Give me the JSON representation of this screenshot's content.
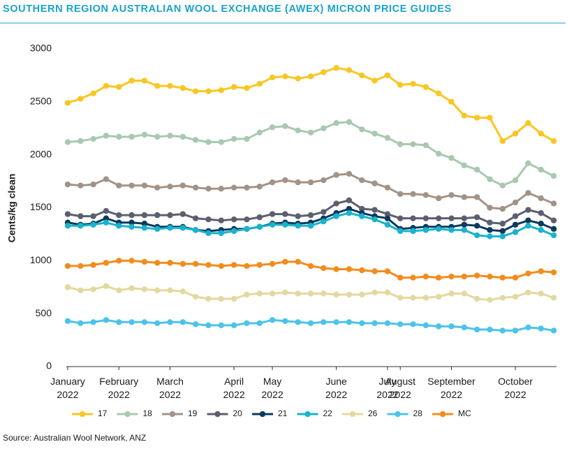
{
  "chart_data": {
    "type": "line",
    "title": "SOUTHERN REGION AUSTRALIAN WOOL EXCHANGE (AWEX) MICRON PRICE GUIDES",
    "ylabel": "Cents/kg clean",
    "source": "Source: Australian Wool Network, ANZ",
    "categories": [
      "January 2022",
      null,
      null,
      null,
      "February 2022",
      null,
      null,
      null,
      "March 2022",
      null,
      null,
      null,
      null,
      "April 2022",
      null,
      null,
      "May 2022",
      null,
      null,
      null,
      null,
      "June 2022",
      null,
      null,
      null,
      "July 2022",
      "August 2022",
      null,
      null,
      null,
      "September 2022",
      null,
      null,
      null,
      null,
      "October 2022",
      null,
      null,
      null
    ],
    "ylim": [
      0,
      3000
    ],
    "yticks": [
      0,
      500,
      1000,
      1500,
      2000,
      2500,
      3000
    ],
    "grid": false,
    "legend": "bottom",
    "series": [
      {
        "name": "17",
        "color": "#f9c623",
        "values": [
          2490,
          2530,
          2580,
          2650,
          2640,
          2700,
          2700,
          2650,
          2650,
          2630,
          2600,
          2600,
          2610,
          2640,
          2630,
          2670,
          2730,
          2740,
          2720,
          2740,
          2780,
          2820,
          2800,
          2750,
          2700,
          2750,
          2660,
          2670,
          2640,
          2580,
          2500,
          2370,
          2350,
          2350,
          2130,
          2200,
          2300,
          2200,
          2130
        ]
      },
      {
        "name": "18",
        "color": "#a8c9b0",
        "values": [
          2120,
          2130,
          2150,
          2180,
          2170,
          2170,
          2190,
          2170,
          2180,
          2170,
          2140,
          2120,
          2120,
          2150,
          2150,
          2210,
          2260,
          2270,
          2230,
          2210,
          2250,
          2300,
          2310,
          2240,
          2200,
          2160,
          2100,
          2100,
          2090,
          2010,
          1970,
          1900,
          1860,
          1770,
          1710,
          1760,
          1920,
          1860,
          1800
        ]
      },
      {
        "name": "19",
        "color": "#a39387",
        "values": [
          1720,
          1710,
          1720,
          1770,
          1710,
          1710,
          1710,
          1690,
          1700,
          1710,
          1690,
          1680,
          1680,
          1690,
          1690,
          1700,
          1740,
          1760,
          1740,
          1740,
          1760,
          1810,
          1820,
          1760,
          1730,
          1690,
          1630,
          1630,
          1620,
          1590,
          1620,
          1600,
          1600,
          1500,
          1490,
          1550,
          1640,
          1590,
          1540
        ]
      },
      {
        "name": "20",
        "color": "#5c5f6e",
        "values": [
          1440,
          1420,
          1420,
          1470,
          1430,
          1430,
          1430,
          1430,
          1430,
          1440,
          1400,
          1390,
          1380,
          1390,
          1390,
          1410,
          1440,
          1440,
          1420,
          1430,
          1460,
          1540,
          1570,
          1490,
          1480,
          1440,
          1400,
          1400,
          1400,
          1400,
          1400,
          1400,
          1410,
          1360,
          1350,
          1420,
          1480,
          1450,
          1380
        ]
      },
      {
        "name": "21",
        "color": "#0c3a5c",
        "values": [
          1360,
          1340,
          1350,
          1400,
          1360,
          1360,
          1350,
          1320,
          1320,
          1320,
          1290,
          1280,
          1290,
          1300,
          1300,
          1320,
          1350,
          1360,
          1350,
          1360,
          1400,
          1450,
          1490,
          1450,
          1420,
          1400,
          1300,
          1310,
          1320,
          1320,
          1320,
          1340,
          1330,
          1290,
          1280,
          1340,
          1380,
          1350,
          1300
        ]
      },
      {
        "name": "22",
        "color": "#19b3cd",
        "values": [
          1330,
          1330,
          1340,
          1360,
          1330,
          1320,
          1310,
          1300,
          1310,
          1310,
          1290,
          1260,
          1260,
          1280,
          1300,
          1320,
          1340,
          1340,
          1330,
          1330,
          1370,
          1420,
          1450,
          1420,
          1390,
          1340,
          1280,
          1280,
          1290,
          1300,
          1290,
          1290,
          1240,
          1230,
          1230,
          1270,
          1330,
          1290,
          1240
        ]
      },
      {
        "name": "26",
        "color": "#e3d9a0",
        "values": [
          750,
          720,
          730,
          760,
          720,
          740,
          730,
          720,
          720,
          710,
          660,
          640,
          640,
          640,
          680,
          690,
          690,
          700,
          690,
          690,
          690,
          680,
          680,
          680,
          700,
          700,
          650,
          650,
          650,
          660,
          690,
          690,
          640,
          630,
          650,
          660,
          700,
          690,
          650
        ]
      },
      {
        "name": "28",
        "color": "#4cc3ea",
        "values": [
          430,
          410,
          420,
          440,
          420,
          420,
          420,
          410,
          420,
          420,
          400,
          390,
          390,
          390,
          410,
          410,
          440,
          430,
          420,
          410,
          420,
          420,
          420,
          410,
          410,
          410,
          400,
          400,
          390,
          380,
          380,
          370,
          350,
          350,
          340,
          340,
          370,
          360,
          340
        ]
      },
      {
        "name": "MC",
        "color": "#f28c1e",
        "values": [
          950,
          950,
          960,
          980,
          1000,
          1000,
          990,
          980,
          980,
          970,
          970,
          960,
          950,
          960,
          950,
          960,
          970,
          990,
          990,
          950,
          930,
          920,
          920,
          910,
          900,
          900,
          840,
          840,
          850,
          840,
          850,
          850,
          860,
          850,
          840,
          840,
          880,
          900,
          890
        ]
      }
    ]
  }
}
